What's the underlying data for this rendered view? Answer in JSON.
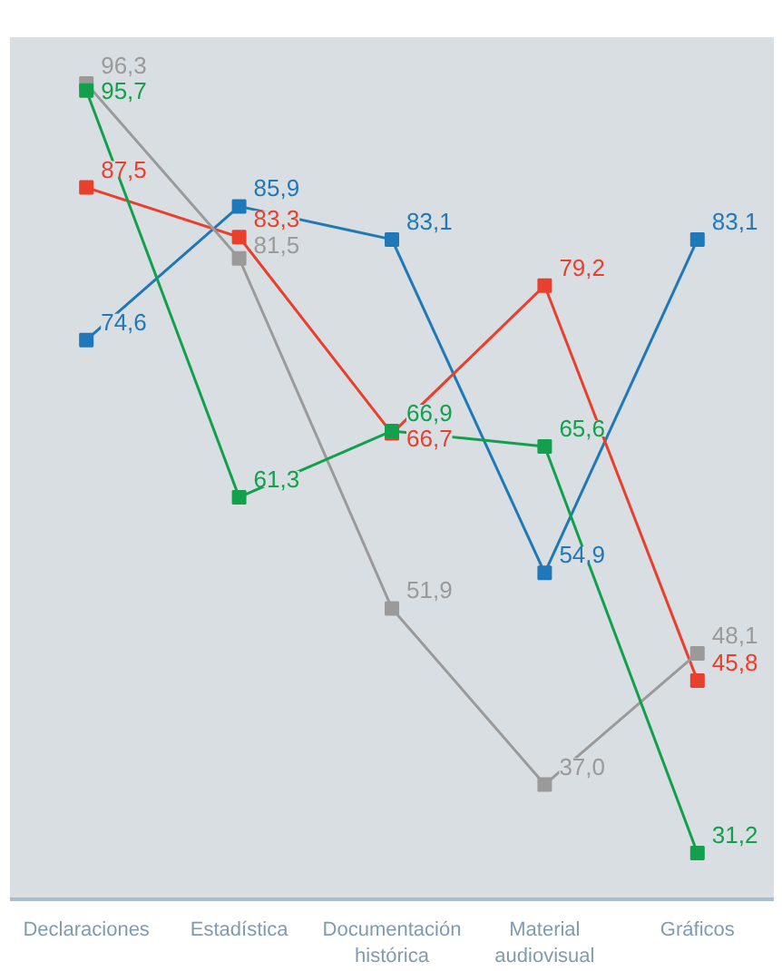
{
  "chart_data": {
    "type": "line",
    "categories": [
      "Declaraciones",
      "Estadística",
      "Documentación\nhistórica",
      "Material\naudiovisual",
      "Gráficos"
    ],
    "series": [
      {
        "color": "#1f78b8",
        "values": [
          74.6,
          85.9,
          83.1,
          54.9,
          83.1
        ],
        "value_labels": [
          "74,6",
          "85,9",
          "83,1",
          "54,9",
          "83,1"
        ]
      },
      {
        "color": "#e8402c",
        "values": [
          87.5,
          83.3,
          66.7,
          79.2,
          45.8
        ],
        "value_labels": [
          "87,5",
          "83,3",
          "66,7",
          "79,2",
          "45,8"
        ]
      },
      {
        "color": "#9a9a9a",
        "values": [
          96.3,
          81.5,
          51.9,
          37.0,
          48.1
        ],
        "value_labels": [
          "96,3",
          "81,5",
          "51,9",
          "37,0",
          "48,1"
        ]
      },
      {
        "color": "#12a04c",
        "values": [
          95.7,
          61.3,
          66.9,
          65.6,
          31.2
        ],
        "value_labels": [
          "95,7",
          "61,3",
          "66,9",
          "65,6",
          "31,2"
        ]
      }
    ],
    "marker": "square",
    "grid": false
  }
}
